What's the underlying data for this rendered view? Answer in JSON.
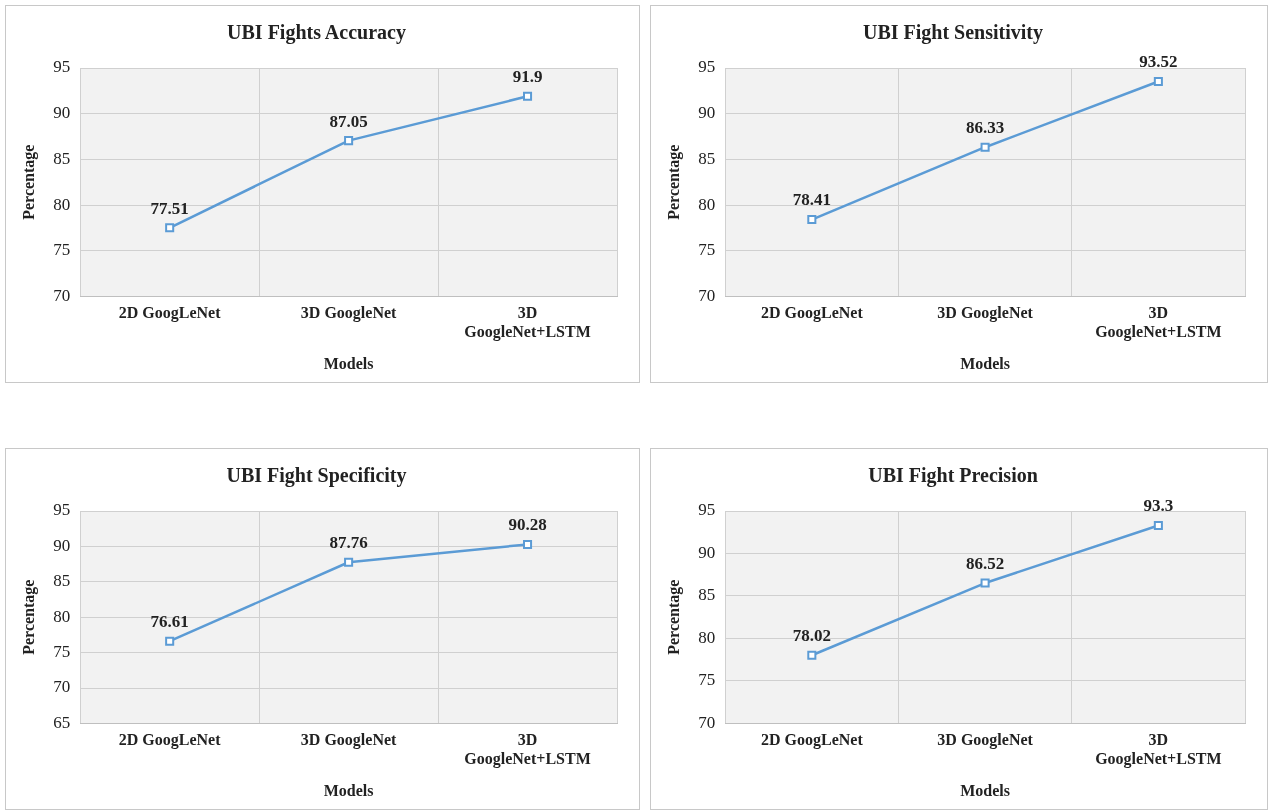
{
  "chart_data": [
    {
      "type": "line",
      "title": "UBI Fights Accuracy",
      "xlabel": "Models",
      "ylabel": "Percentage",
      "categories": [
        "2D GoogLeNet",
        "3D GoogleNet",
        "3D GoogleNet+LSTM"
      ],
      "series": [
        {
          "color": "#5b9bd5",
          "values": [
            77.51,
            87.05,
            91.9
          ]
        }
      ],
      "ylim": [
        70,
        95
      ],
      "yticks": [
        70,
        75,
        80,
        85,
        90,
        95
      ],
      "grid": true,
      "data_labels": true,
      "marker": "square"
    },
    {
      "type": "line",
      "title": "UBI Fight Sensitivity",
      "xlabel": "Models",
      "ylabel": "Percentage",
      "categories": [
        "2D GoogLeNet",
        "3D GoogleNet",
        "3D GoogleNet+LSTM"
      ],
      "series": [
        {
          "color": "#5b9bd5",
          "values": [
            78.41,
            86.33,
            93.52
          ]
        }
      ],
      "ylim": [
        70,
        95
      ],
      "yticks": [
        70,
        75,
        80,
        85,
        90,
        95
      ],
      "grid": true,
      "data_labels": true,
      "marker": "square"
    },
    {
      "type": "line",
      "title": "UBI Fight Specificity",
      "xlabel": "Models",
      "ylabel": "Percentage",
      "categories": [
        "2D GoogLeNet",
        "3D GoogleNet",
        "3D GoogleNet+LSTM"
      ],
      "series": [
        {
          "color": "#5b9bd5",
          "values": [
            76.61,
            87.76,
            90.28
          ]
        }
      ],
      "ylim": [
        65,
        95
      ],
      "yticks": [
        65,
        70,
        75,
        80,
        85,
        90,
        95
      ],
      "grid": true,
      "data_labels": true,
      "marker": "square"
    },
    {
      "type": "line",
      "title": "UBI Fight Precision",
      "xlabel": "Models",
      "ylabel": "Percentage",
      "categories": [
        "2D GoogLeNet",
        "3D GoogleNet",
        "3D GoogleNet+LSTM"
      ],
      "series": [
        {
          "color": "#5b9bd5",
          "values": [
            78.02,
            86.52,
            93.3
          ]
        }
      ],
      "ylim": [
        70,
        95
      ],
      "yticks": [
        70,
        75,
        80,
        85,
        90,
        95
      ],
      "grid": true,
      "data_labels": true,
      "marker": "square"
    }
  ]
}
